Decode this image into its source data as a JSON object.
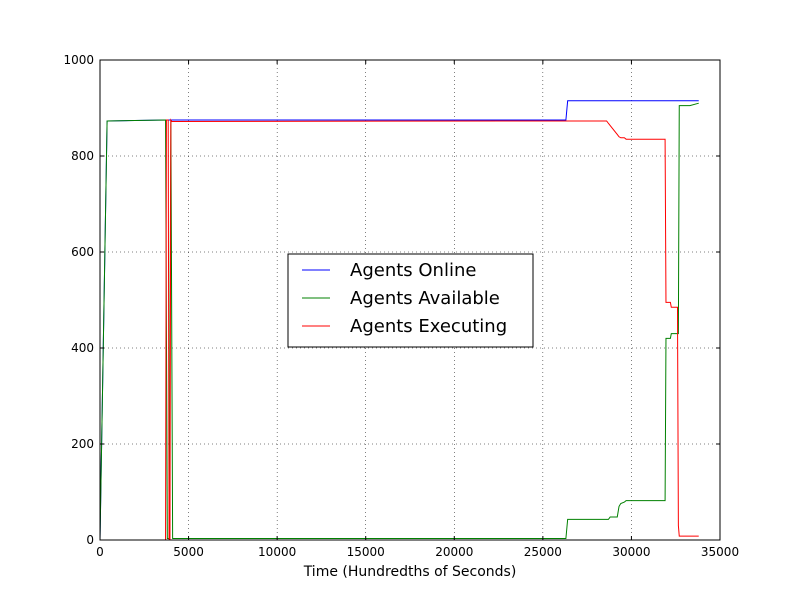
{
  "chart_data": {
    "type": "line",
    "title": "",
    "xlabel": "Time (Hundredths of Seconds)",
    "ylabel": "",
    "xlim": [
      0,
      35000
    ],
    "ylim": [
      0,
      1000
    ],
    "xticks": [
      0,
      5000,
      10000,
      15000,
      20000,
      25000,
      30000,
      35000
    ],
    "yticks": [
      0,
      200,
      400,
      600,
      800,
      1000
    ],
    "xtick_labels": [
      "0",
      "5000",
      "10000",
      "15000",
      "20000",
      "25000",
      "30000",
      "35000"
    ],
    "ytick_labels": [
      "0",
      "200",
      "400",
      "600",
      "800",
      "1000"
    ],
    "grid": true,
    "legend_position": "center",
    "series": [
      {
        "name": "Agents Online",
        "color": "#0000ff",
        "x": [
          0,
          400,
          3700,
          26300,
          26300,
          26400,
          33800
        ],
        "y": [
          0,
          873,
          875,
          875,
          875,
          915,
          915
        ]
      },
      {
        "name": "Agents Available",
        "color": "#008000",
        "x": [
          0,
          400,
          3700,
          3700,
          3800,
          3900,
          4000,
          4000,
          4100,
          26300,
          26400,
          27500,
          28700,
          28800,
          29200,
          29300,
          29400,
          29600,
          29700,
          31900,
          31950,
          32200,
          32250,
          32600,
          32650,
          32700,
          33300,
          33800
        ],
        "y": [
          0,
          873,
          875,
          875,
          3,
          3,
          875,
          875,
          3,
          3,
          43,
          43,
          43,
          48,
          48,
          70,
          76,
          79,
          82,
          82,
          420,
          420,
          430,
          430,
          430,
          905,
          905,
          910
        ]
      },
      {
        "name": "Agents Executing",
        "color": "#ff0000",
        "x": [
          0,
          3700,
          3750,
          3850,
          3900,
          3950,
          4000,
          4050,
          26300,
          28600,
          28700,
          29200,
          29300,
          29400,
          29600,
          29700,
          31900,
          31950,
          32200,
          32250,
          32600,
          32650,
          32700,
          33300,
          33800
        ],
        "y": [
          0,
          0,
          875,
          875,
          0,
          0,
          875,
          872,
          873,
          873,
          868,
          845,
          840,
          838,
          838,
          835,
          835,
          495,
          495,
          485,
          485,
          30,
          8,
          8,
          8
        ]
      }
    ]
  }
}
